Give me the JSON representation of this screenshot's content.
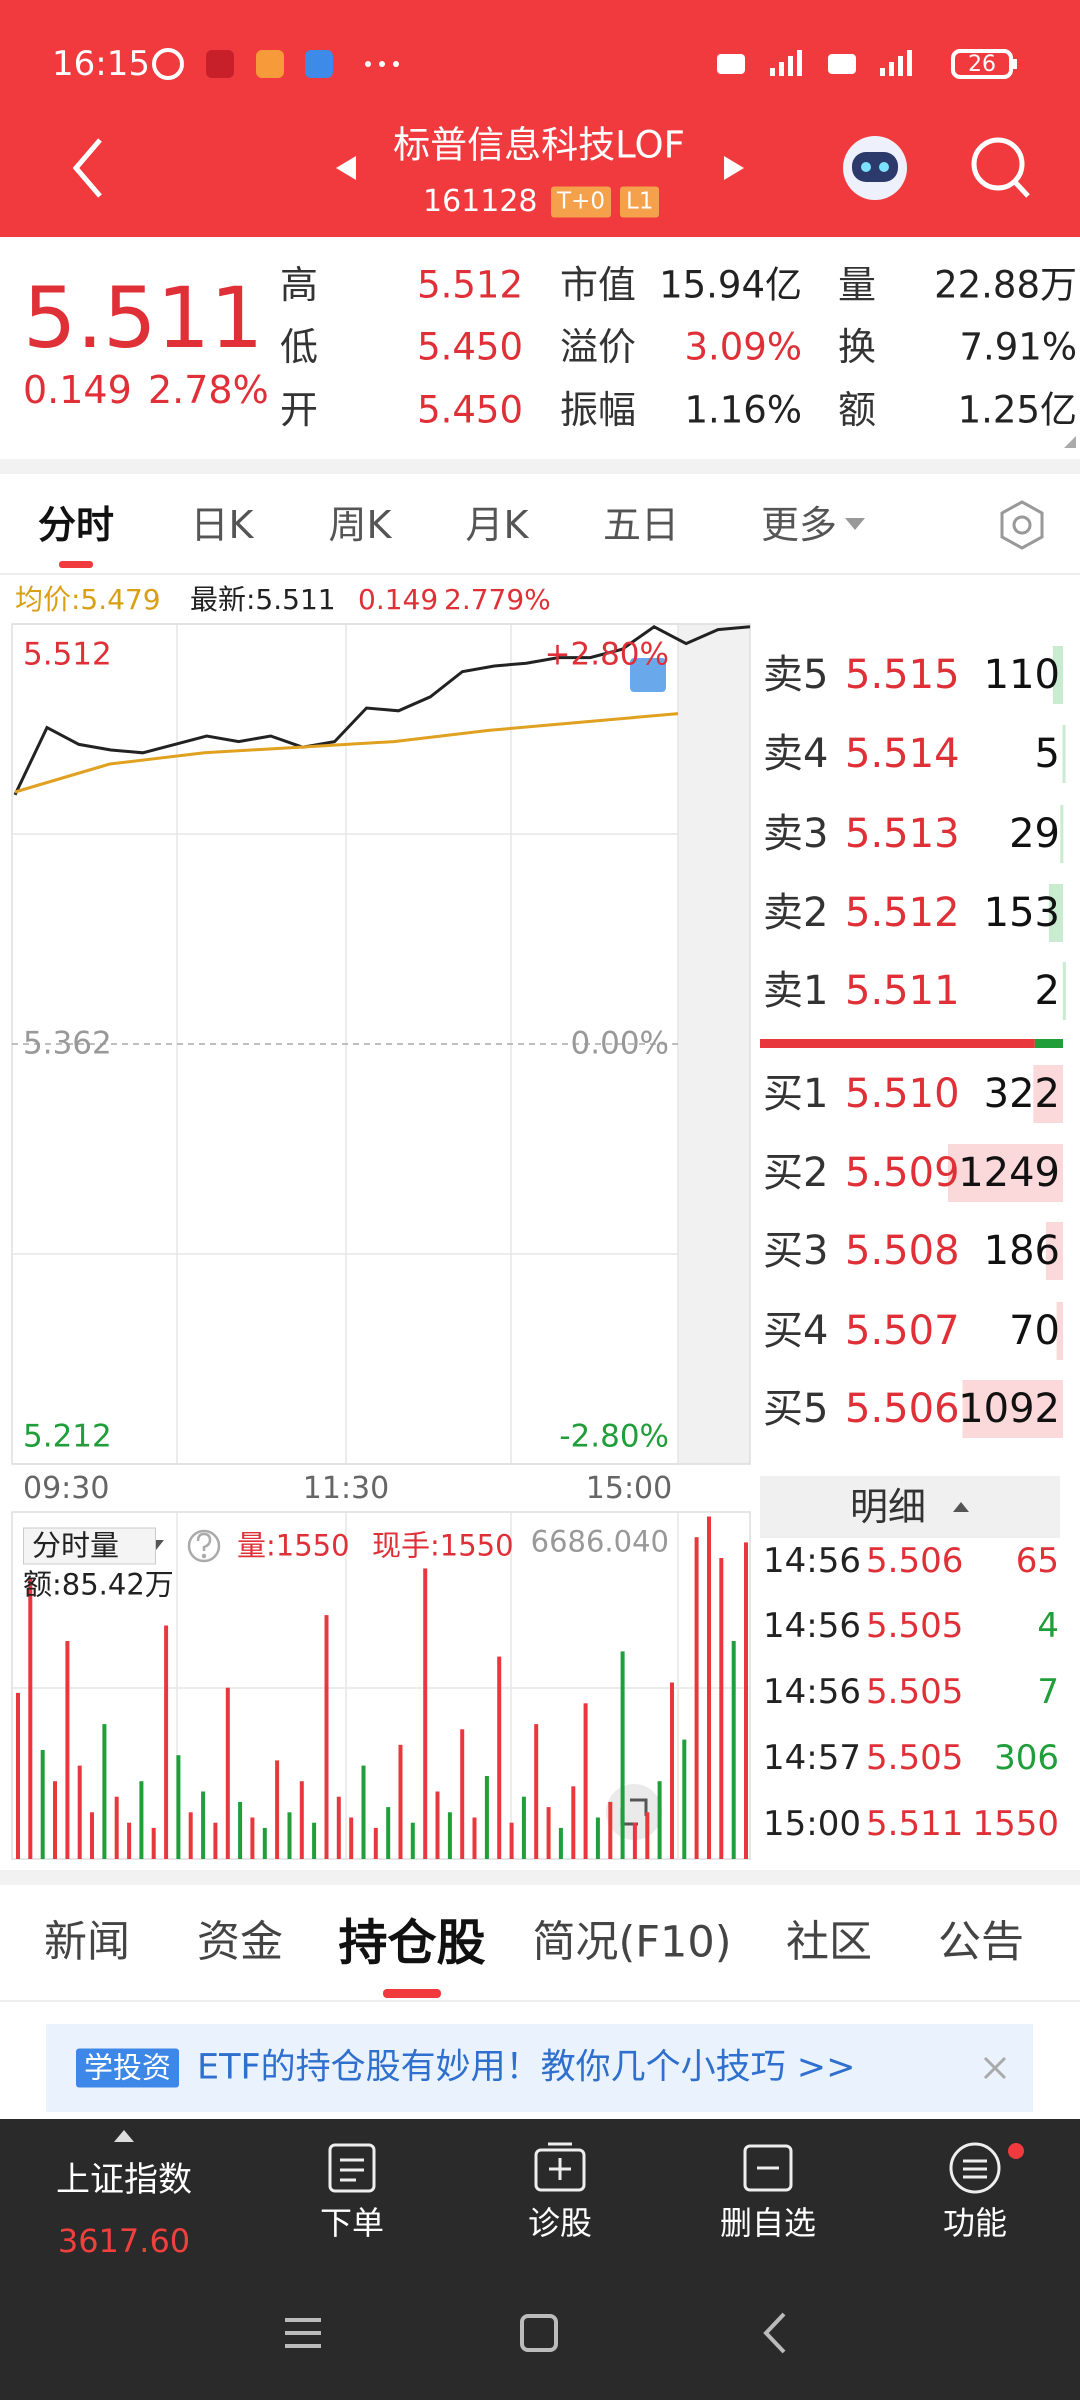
{
  "status_bar": {
    "time": "16:15",
    "battery": "26"
  },
  "header": {
    "title": "标普信息科技LOF",
    "code": "161128",
    "badges": [
      "T+0",
      "L1"
    ]
  },
  "quote": {
    "price": "5.511",
    "change": "0.149",
    "change_pct": "2.78%",
    "stats": [
      {
        "label": "高",
        "value": "5.512",
        "color": "#e03037"
      },
      {
        "label": "市值",
        "value": "15.94亿",
        "color": "#222222"
      },
      {
        "label": "量",
        "value": "22.88万",
        "color": "#222222"
      },
      {
        "label": "低",
        "value": "5.450",
        "color": "#e03037"
      },
      {
        "label": "溢价",
        "value": "3.09%",
        "color": "#e03037"
      },
      {
        "label": "换",
        "value": "7.91%",
        "color": "#222222"
      },
      {
        "label": "开",
        "value": "5.450",
        "color": "#e03037"
      },
      {
        "label": "振幅",
        "value": "1.16%",
        "color": "#222222"
      },
      {
        "label": "额",
        "value": "1.25亿",
        "color": "#222222"
      }
    ]
  },
  "period_tabs": {
    "items": [
      "分时",
      "日K",
      "周K",
      "月K",
      "五日",
      "更多"
    ],
    "active": 0
  },
  "intraday": {
    "info": {
      "avg": "均价:5.479",
      "latest": "最新:5.511",
      "change": "0.149",
      "change_pct": "2.779%"
    },
    "ylim": [
      5.212,
      5.512
    ],
    "yticks": [
      5.512,
      5.362,
      5.212
    ],
    "tick_colors": [
      "#e03037",
      "#999999",
      "#1f9e3a"
    ],
    "pct_labels": [
      "+2.80%",
      "0.00%",
      "-2.80%"
    ],
    "times": [
      "09:30",
      "11:30",
      "15:00"
    ],
    "series": [
      {
        "color": "#222222",
        "values": [
          5.451,
          5.475,
          5.469,
          5.467,
          5.466,
          5.469,
          5.472,
          5.47,
          5.472,
          5.468,
          5.47,
          5.482,
          5.481,
          5.486,
          5.495,
          5.497,
          5.498,
          5.5,
          5.5,
          5.503,
          5.511,
          5.505,
          5.51,
          5.511
        ]
      },
      {
        "color": "#e0a020",
        "values": [
          5.452,
          5.462,
          5.466,
          5.468,
          5.47,
          5.474,
          5.477,
          5.48
        ]
      }
    ]
  },
  "volume": {
    "title": "分时量",
    "vol": "量:1550",
    "hand": "现手:1550",
    "amount": "额:85.42万",
    "ylim": [
      0,
      6686.04
    ],
    "yticks": [
      {
        "value": 6686.04,
        "label": "6686.040"
      }
    ],
    "values": [
      3200,
      5400,
      2100,
      1500,
      4200,
      1800,
      900,
      2600,
      1200,
      700,
      1500,
      600,
      4500,
      2000,
      900,
      1300,
      700,
      3300,
      1100,
      800,
      600,
      1900,
      900,
      1500,
      700,
      4700,
      1200,
      800,
      1800,
      600,
      1000,
      2200,
      700,
      5600,
      1300,
      900,
      2500,
      800,
      1600,
      3900,
      700,
      1200,
      2600,
      1000,
      600,
      1400,
      3000,
      800,
      1100,
      4000,
      700,
      900,
      1500,
      3400,
      2300,
      6200,
      6600,
      5800,
      4200,
      6100
    ],
    "colors": [
      "#e8383d",
      "#e8383d",
      "#1f9e3a",
      "#e8383d",
      "#e8383d",
      "#e8383d",
      "#e8383d",
      "#1f9e3a",
      "#e8383d",
      "#e8383d",
      "#1f9e3a",
      "#e8383d",
      "#e8383d",
      "#1f9e3a",
      "#e8383d",
      "#1f9e3a",
      "#e8383d",
      "#e8383d",
      "#1f9e3a",
      "#e8383d",
      "#1f9e3a",
      "#e8383d",
      "#1f9e3a",
      "#e8383d",
      "#1f9e3a",
      "#e8383d",
      "#e8383d",
      "#e8383d",
      "#1f9e3a",
      "#e8383d",
      "#1f9e3a",
      "#e8383d",
      "#1f9e3a",
      "#e8383d",
      "#e8383d",
      "#1f9e3a",
      "#e8383d",
      "#e8383d",
      "#1f9e3a",
      "#e8383d",
      "#e8383d",
      "#1f9e3a",
      "#e8383d",
      "#e8383d",
      "#1f9e3a",
      "#e8383d",
      "#e8383d",
      "#1f9e3a",
      "#e8383d",
      "#1f9e3a",
      "#e8383d",
      "#e8383d",
      "#1f9e3a",
      "#e8383d",
      "#1f9e3a",
      "#e8383d",
      "#e8383d",
      "#e8383d",
      "#1f9e3a",
      "#e8383d"
    ]
  },
  "order_book": {
    "asks": [
      {
        "label": "卖5",
        "price": "5.515",
        "volume": 110
      },
      {
        "label": "卖4",
        "price": "5.514",
        "volume": 5
      },
      {
        "label": "卖3",
        "price": "5.513",
        "volume": 29
      },
      {
        "label": "卖2",
        "price": "5.512",
        "volume": 153
      },
      {
        "label": "卖1",
        "price": "5.511",
        "volume": 2
      }
    ],
    "bids": [
      {
        "label": "买1",
        "price": "5.510",
        "volume": 322
      },
      {
        "label": "买2",
        "price": "5.509",
        "volume": 1249
      },
      {
        "label": "买3",
        "price": "5.508",
        "volume": 186
      },
      {
        "label": "买4",
        "price": "5.507",
        "volume": 70
      },
      {
        "label": "买5",
        "price": "5.506",
        "volume": 1092
      }
    ]
  },
  "trades": {
    "title": "明细",
    "rows": [
      {
        "time": "14:56",
        "price": "5.506",
        "volume": 65,
        "color": "#e03037"
      },
      {
        "time": "14:56",
        "price": "5.505",
        "volume": 4,
        "color": "#1f9e3a"
      },
      {
        "time": "14:56",
        "price": "5.505",
        "volume": 7,
        "color": "#1f9e3a"
      },
      {
        "time": "14:57",
        "price": "5.505",
        "volume": 306,
        "color": "#1f9e3a"
      },
      {
        "time": "15:00",
        "price": "5.511",
        "volume": 1550,
        "color": "#e03037"
      }
    ]
  },
  "info_tabs": {
    "items": [
      "新闻",
      "资金",
      "持仓股",
      "简况(F10)",
      "社区",
      "公告"
    ],
    "active": 2
  },
  "banner": {
    "badge": "学投资",
    "text": "ETF的持仓股有妙用！教你几个小技巧 >>"
  },
  "bottom_bar": {
    "index_name": "上证指数",
    "index_value": "3617.60",
    "items": [
      "下单",
      "诊股",
      "删自选",
      "功能"
    ]
  }
}
